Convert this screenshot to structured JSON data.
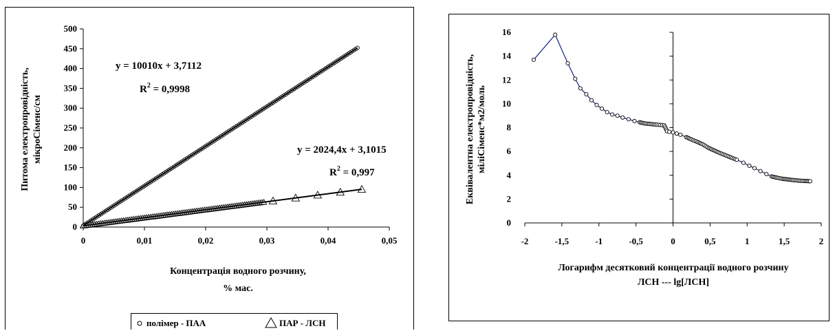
{
  "chart_data": [
    {
      "type": "scatter",
      "xlabel": [
        "Концентрація водного розчину,",
        "% мас."
      ],
      "ylabel": [
        "Питома електропровідність,",
        "мікроСіменс/см"
      ],
      "xlim": [
        0,
        0.05
      ],
      "ylim": [
        0,
        500
      ],
      "xticks": [
        0,
        0.01,
        0.02,
        0.03,
        0.04,
        0.05
      ],
      "xtick_labels": [
        "0",
        "0,01",
        "0,02",
        "0,03",
        "0,04",
        "0,05"
      ],
      "yticks": [
        0,
        50,
        100,
        150,
        200,
        250,
        300,
        350,
        400,
        450,
        500
      ],
      "ytick_labels": [
        "0",
        "50",
        "100",
        "150",
        "200",
        "250",
        "300",
        "350",
        "400",
        "450",
        "500"
      ],
      "grid": false,
      "legend_position": "bottom",
      "series": [
        {
          "name": "полімер - ПАА",
          "marker": "circle",
          "x_range": [
            0,
            0.0448
          ],
          "count": 170,
          "trendline": {
            "slope": 10010,
            "intercept": 3.7112
          },
          "equation": "y = 10010x + 3,7112",
          "r2_label": "R",
          "r2_sup": "2",
          "r2_value": " = 0,9998"
        },
        {
          "name": "ПАР - ЛСН",
          "marker": "triangle",
          "x_dense": [
            0,
            0.0295
          ],
          "dense_count": 95,
          "x_sparse": [
            0.031,
            0.0347,
            0.0383,
            0.042,
            0.0455
          ],
          "trendline": {
            "slope": 2024.4,
            "intercept": 3.1015
          },
          "equation": "y = 2024,4x + 3,1015",
          "r2_label": "R",
          "r2_sup": "2",
          "r2_value": " = 0,997"
        }
      ]
    },
    {
      "type": "line",
      "marker": "circle",
      "xlabel": [
        "Логарифм десятковий концентрації водного розчину",
        "ЛСН --- lg[ЛСН]"
      ],
      "ylabel": [
        "Еквівалентна  електропровідність,",
        "міліСіменс*м2/моль"
      ],
      "xlim": [
        -2,
        2
      ],
      "ylim": [
        0,
        16
      ],
      "xticks": [
        -2,
        -1.5,
        -1,
        -0.5,
        0,
        0.5,
        1,
        1.5,
        2
      ],
      "xtick_labels": [
        "-2",
        "-1,5",
        "-1",
        "-0,5",
        "0",
        "0,5",
        "1",
        "1,5",
        "2"
      ],
      "yticks": [
        0,
        2,
        4,
        6,
        8,
        10,
        12,
        14,
        16
      ],
      "ytick_labels": [
        "0",
        "2",
        "4",
        "6",
        "8",
        "10",
        "12",
        "14",
        "16"
      ],
      "grid": false,
      "x": [
        -1.88,
        -1.59,
        -1.42,
        -1.32,
        -1.25,
        -1.17,
        -1.1,
        -1.03,
        -0.96,
        -0.89,
        -0.82,
        -0.75,
        -0.68,
        -0.6,
        -0.52,
        -0.45,
        -0.38,
        -0.3,
        -0.22,
        -0.12,
        -0.08,
        -0.05,
        0.0,
        0.05,
        0.1,
        0.18,
        0.25,
        0.33,
        0.4,
        0.48,
        0.55,
        0.62,
        0.7,
        0.78,
        0.86,
        0.95,
        1.03,
        1.1,
        1.18,
        1.26,
        1.33,
        1.4,
        1.48,
        1.55,
        1.62,
        1.7,
        1.78,
        1.85
      ],
      "y": [
        13.7,
        15.8,
        13.4,
        12.1,
        11.3,
        10.8,
        10.3,
        9.9,
        9.6,
        9.3,
        9.1,
        9.0,
        8.85,
        8.7,
        8.55,
        8.45,
        8.35,
        8.3,
        8.25,
        8.2,
        7.7,
        7.65,
        7.6,
        7.5,
        7.4,
        7.2,
        7.0,
        6.8,
        6.6,
        6.3,
        6.1,
        5.9,
        5.7,
        5.5,
        5.3,
        5.05,
        4.8,
        4.6,
        4.35,
        4.1,
        3.9,
        3.8,
        3.7,
        3.65,
        3.6,
        3.55,
        3.52,
        3.5
      ]
    }
  ]
}
